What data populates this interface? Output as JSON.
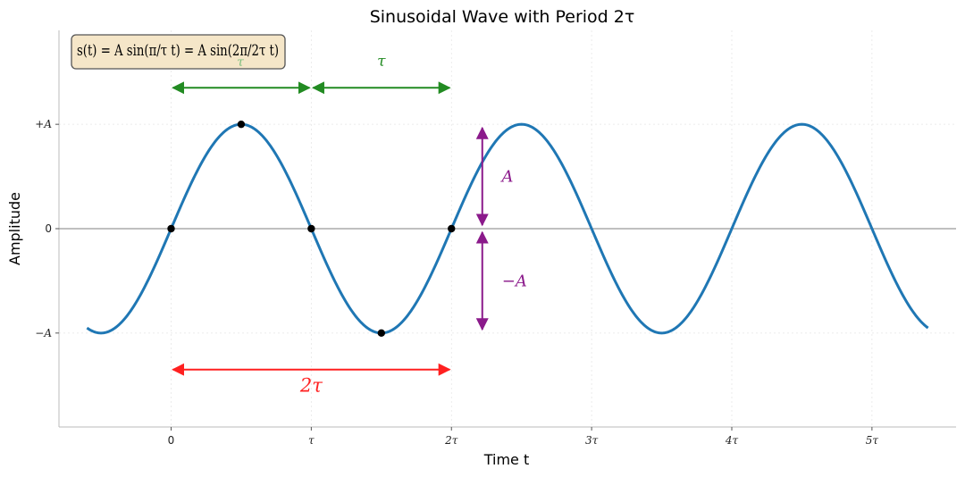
{
  "chart_data": {
    "type": "line",
    "title": "Sinusoidal Wave with Period 2τ",
    "xlabel": "Time t",
    "ylabel": "Amplitude",
    "xlim": [
      -0.8,
      5.6
    ],
    "ylim": [
      -1.9,
      1.9
    ],
    "x_ticks": [
      {
        "value": 0,
        "label": "0"
      },
      {
        "value": 1,
        "label": "τ"
      },
      {
        "value": 2,
        "label": "2τ"
      },
      {
        "value": 3,
        "label": "3τ"
      },
      {
        "value": 4,
        "label": "4τ"
      },
      {
        "value": 5,
        "label": "5τ"
      }
    ],
    "y_ticks": [
      {
        "value": 1,
        "label": "+A"
      },
      {
        "value": 0,
        "label": "0"
      },
      {
        "value": -1,
        "label": "−A"
      }
    ],
    "grid": true,
    "series": [
      {
        "function": "sin(pi*t)",
        "x_range": [
          -0.6,
          5.4
        ],
        "amplitude": 1,
        "period": 2,
        "color": "#1f77b4"
      }
    ],
    "key_points": [
      {
        "x": 0,
        "y": 0
      },
      {
        "x": 0.5,
        "y": 1
      },
      {
        "x": 1,
        "y": 0
      },
      {
        "x": 1.5,
        "y": -1
      },
      {
        "x": 2,
        "y": 0
      }
    ],
    "annotations": [
      {
        "kind": "h-arrow",
        "from_x": 0,
        "to_x": 1,
        "y": 1.35,
        "label": "",
        "color": "#228b22"
      },
      {
        "kind": "h-arrow",
        "from_x": 1,
        "to_x": 2,
        "y": 1.35,
        "label": "τ",
        "label_y": 1.6,
        "color": "#228b22"
      },
      {
        "kind": "h-arrow",
        "from_x": 0,
        "to_x": 2,
        "y": -1.35,
        "label": "2τ",
        "label_y": -1.5,
        "color": "#ff2020"
      },
      {
        "kind": "v-arrow",
        "x": 2.22,
        "from_y": 0,
        "to_y": 1,
        "label": "A",
        "label_x": 2.4,
        "label_y": 0.5,
        "color": "#8b1a8b"
      },
      {
        "kind": "v-arrow",
        "x": 2.22,
        "from_y": 0,
        "to_y": -1,
        "label": "−A",
        "label_x": 2.45,
        "label_y": -0.5,
        "color": "#8b1a8b"
      }
    ],
    "formula_box": {
      "text": "s(t) = A sin(π/τ t) = A sin(2π/2τ t)",
      "ghost_label": "τ",
      "background": "#f5e6c8",
      "border": "#555555"
    },
    "colors": {
      "wave": "#1f77b4",
      "tau_arrow": "#228b22",
      "period_arrow": "#ff2020",
      "amplitude_arrow": "#8b1a8b",
      "point": "#000000",
      "zero_line": "#808080"
    }
  }
}
